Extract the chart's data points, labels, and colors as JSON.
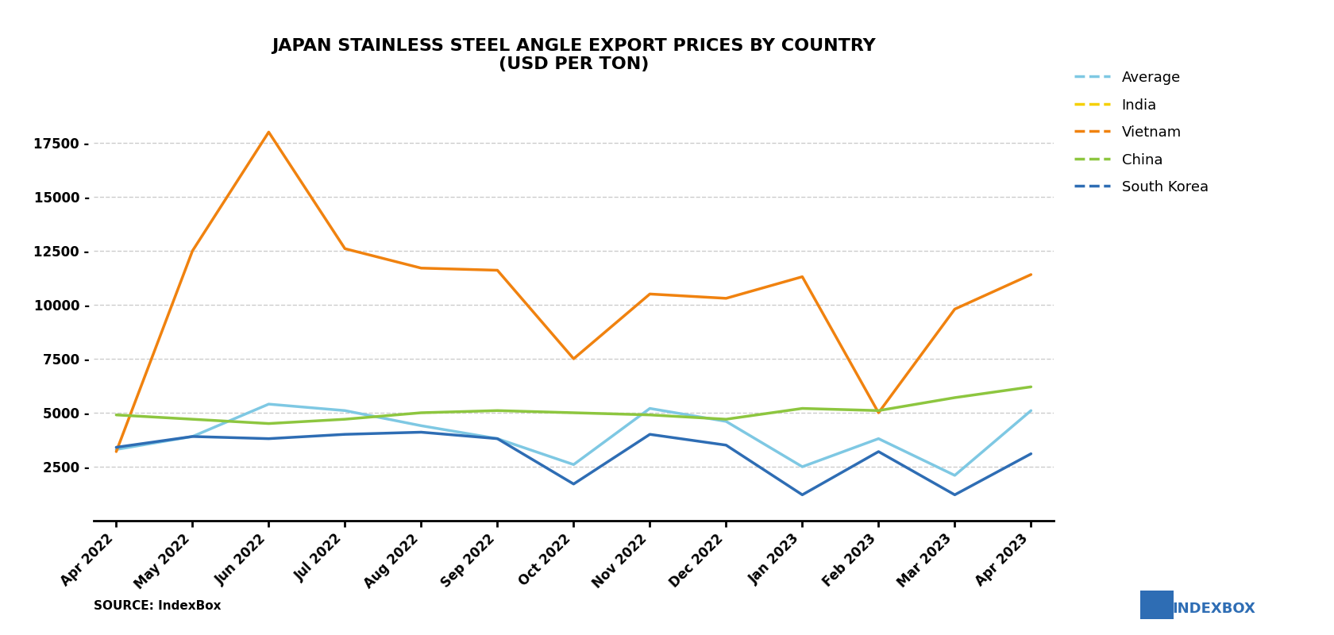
{
  "title": "JAPAN STAINLESS STEEL ANGLE EXPORT PRICES BY COUNTRY\n(USD PER TON)",
  "source": "SOURCE: IndexBox",
  "x_labels": [
    "Apr 2022",
    "May 2022",
    "Jun 2022",
    "Jul 2022",
    "Aug 2022",
    "Sep 2022",
    "Oct 2022",
    "Nov 2022",
    "Dec 2022",
    "Jan 2023",
    "Feb 2023",
    "Mar 2023",
    "Apr 2023"
  ],
  "series": {
    "Average": {
      "color": "#7ec8e3",
      "values": [
        3300,
        3900,
        5400,
        5100,
        4400,
        3800,
        2600,
        5200,
        4600,
        2500,
        3800,
        2100,
        5100
      ]
    },
    "India": {
      "color": "#f5d000",
      "values": [
        null,
        null,
        null,
        null,
        null,
        null,
        null,
        null,
        null,
        null,
        null,
        null,
        null
      ]
    },
    "Vietnam": {
      "color": "#f0820f",
      "values": [
        3200,
        12500,
        18000,
        12600,
        11700,
        11600,
        7500,
        10500,
        10300,
        11300,
        5000,
        9800,
        11400
      ]
    },
    "China": {
      "color": "#8dc63f",
      "values": [
        4900,
        4700,
        4500,
        4700,
        5000,
        5100,
        5000,
        4900,
        4700,
        5200,
        5100,
        5700,
        6200
      ]
    },
    "South Korea": {
      "color": "#2e6db4",
      "values": [
        3400,
        3900,
        3800,
        4000,
        4100,
        3800,
        1700,
        4000,
        3500,
        1200,
        3200,
        1200,
        3100
      ]
    }
  },
  "ylim": [
    0,
    20000
  ],
  "yticks": [
    2500,
    5000,
    7500,
    10000,
    12500,
    15000,
    17500
  ],
  "background_color": "#ffffff",
  "grid_color": "#cccccc",
  "title_fontsize": 16,
  "legend_order": [
    "Average",
    "India",
    "Vietnam",
    "China",
    "South Korea"
  ]
}
